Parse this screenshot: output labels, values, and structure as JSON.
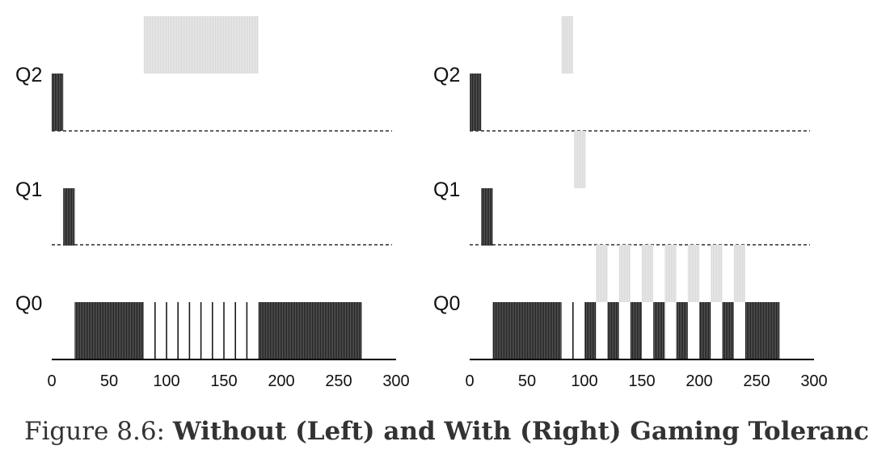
{
  "caption": {
    "prefix": "Figure 8.6:",
    "title": "Without (Left) and With (Right) Gaming Tolerance"
  },
  "colors": {
    "job_a": "#1a1a1a",
    "job_b": "#d9d9d9",
    "axis": "#000000",
    "divider": "#000000"
  },
  "chart_data": [
    {
      "type": "timeline",
      "name": "without-gaming-tolerance",
      "queues": [
        "Q2",
        "Q1",
        "Q0"
      ],
      "x_ticks": [
        0,
        50,
        100,
        150,
        200,
        250,
        300
      ],
      "xlim": [
        0,
        300
      ],
      "job_a_slices": [
        {
          "queue": "Q2",
          "start": 0,
          "end": 10
        },
        {
          "queue": "Q1",
          "start": 10,
          "end": 20
        },
        {
          "queue": "Q0",
          "start": 20,
          "end": 80
        },
        {
          "queue": "Q0",
          "start": 180,
          "end": 270
        }
      ],
      "job_b_slices": [
        {
          "queue": "Q2",
          "start": 80,
          "end": 180
        }
      ],
      "thin_slices": [
        {
          "queue": "Q0",
          "start": 80,
          "end": 180,
          "period": 10
        }
      ]
    },
    {
      "type": "timeline",
      "name": "with-gaming-tolerance",
      "queues": [
        "Q2",
        "Q1",
        "Q0"
      ],
      "x_ticks": [
        0,
        50,
        100,
        150,
        200,
        250,
        300
      ],
      "xlim": [
        0,
        300
      ],
      "job_a_slices": [
        {
          "queue": "Q2",
          "start": 0,
          "end": 10
        },
        {
          "queue": "Q1",
          "start": 10,
          "end": 20
        },
        {
          "queue": "Q0",
          "start": 20,
          "end": 80
        },
        {
          "queue": "Q0",
          "start": 100,
          "end": 110
        },
        {
          "queue": "Q0",
          "start": 120,
          "end": 130
        },
        {
          "queue": "Q0",
          "start": 140,
          "end": 150
        },
        {
          "queue": "Q0",
          "start": 160,
          "end": 170
        },
        {
          "queue": "Q0",
          "start": 180,
          "end": 190
        },
        {
          "queue": "Q0",
          "start": 200,
          "end": 210
        },
        {
          "queue": "Q0",
          "start": 220,
          "end": 230
        },
        {
          "queue": "Q0",
          "start": 240,
          "end": 270
        }
      ],
      "job_b_slices": [
        {
          "queue": "Q2",
          "start": 80,
          "end": 90
        },
        {
          "queue": "Q1",
          "start": 91,
          "end": 101
        },
        {
          "queue": "Q0",
          "start": 110,
          "end": 120
        },
        {
          "queue": "Q0",
          "start": 130,
          "end": 140
        },
        {
          "queue": "Q0",
          "start": 150,
          "end": 160
        },
        {
          "queue": "Q0",
          "start": 170,
          "end": 180
        },
        {
          "queue": "Q0",
          "start": 190,
          "end": 200
        },
        {
          "queue": "Q0",
          "start": 210,
          "end": 220
        },
        {
          "queue": "Q0",
          "start": 230,
          "end": 240
        }
      ],
      "thin_slices": [
        {
          "queue": "Q0",
          "start": 80,
          "end": 100,
          "period": 10
        }
      ]
    }
  ]
}
